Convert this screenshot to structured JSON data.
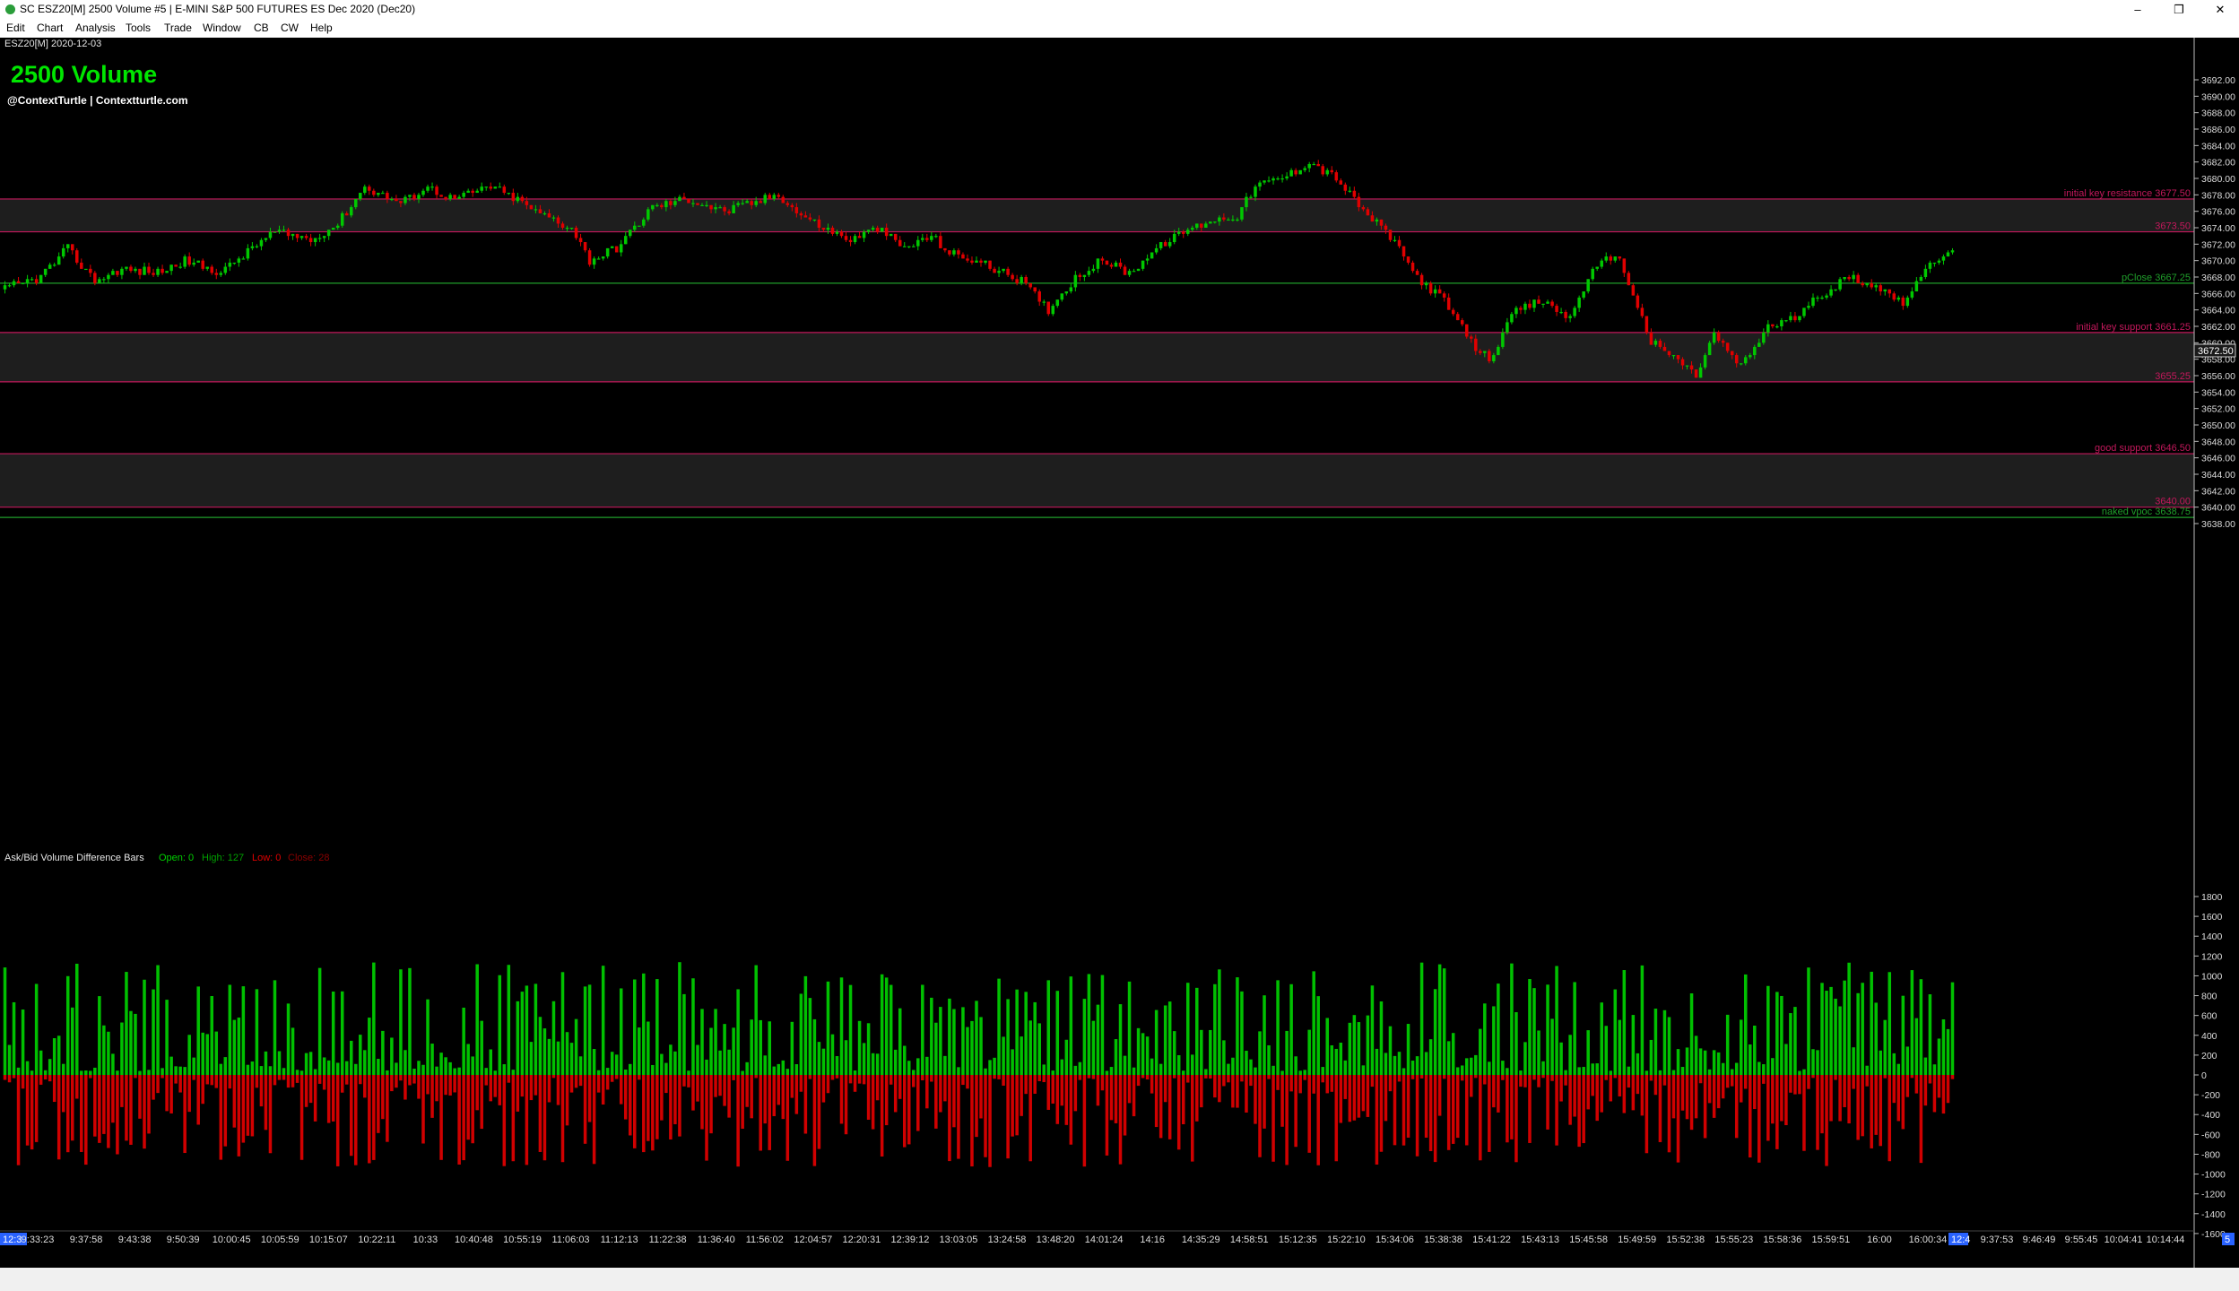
{
  "window": {
    "title": "SC ESZ20[M]  2500 Volume  #5 | E-MINI S&P 500 FUTURES ES Dec 2020 (Dec20)",
    "controls": [
      "–",
      "❐",
      "✕"
    ]
  },
  "menu": [
    "Edit",
    "Chart",
    "Analysis",
    "Tools",
    "Trade",
    "Window",
    "CB",
    "CW",
    "Help"
  ],
  "chart": {
    "symbol_date": "ESZ20[M] 2020-12-03",
    "heading": "2500 Volume",
    "credit": "@ContextTurtle | Contextturtle.com",
    "current_price": "3672.50",
    "price_axis": [
      "3692.00",
      "3690.00",
      "3688.00",
      "3686.00",
      "3684.00",
      "3682.00",
      "3680.00",
      "3678.00",
      "3676.00",
      "3674.00",
      "3672.00",
      "3670.00",
      "3668.00",
      "3666.00",
      "3664.00",
      "3662.00",
      "3660.00",
      "3658.00",
      "3656.00",
      "3654.00",
      "3652.00",
      "3650.00",
      "3648.00",
      "3646.00",
      "3644.00",
      "3642.00",
      "3640.00",
      "3638.00"
    ],
    "levels": [
      {
        "label": "initial key resistance  3677.50",
        "price": 3677.5,
        "color": "#c2185b"
      },
      {
        "label": "3673.50",
        "price": 3673.5,
        "color": "#c2185b"
      },
      {
        "label": "pClose  3667.25",
        "price": 3667.25,
        "color": "#1f9e2a"
      },
      {
        "label": "initial key support  3661.25",
        "price": 3661.25,
        "color": "#c2185b"
      },
      {
        "label": "3655.25",
        "price": 3655.25,
        "color": "#c2185b"
      },
      {
        "label": "good support  3646.50",
        "price": 3646.5,
        "color": "#c2185b"
      },
      {
        "label": "3640.00",
        "price": 3640.0,
        "color": "#c2185b"
      },
      {
        "label": "naked vpoc  3638.75",
        "price": 3638.75,
        "color": "#1f9e2a"
      }
    ],
    "zones": [
      {
        "top": 3677.5,
        "bottom": 3673.5
      },
      {
        "top": 3661.25,
        "bottom": 3655.25
      },
      {
        "top": 3646.5,
        "bottom": 3640.0
      }
    ],
    "up_color": "#00c800",
    "down_color": "#e00000",
    "price_waypoints": [
      [
        0,
        3666.5
      ],
      [
        8,
        3668
      ],
      [
        14,
        3671.5
      ],
      [
        20,
        3667.5
      ],
      [
        26,
        3669
      ],
      [
        34,
        3668.5
      ],
      [
        40,
        3670
      ],
      [
        48,
        3668.5
      ],
      [
        56,
        3672
      ],
      [
        60,
        3673.5
      ],
      [
        68,
        3672.5
      ],
      [
        74,
        3674.5
      ],
      [
        80,
        3679
      ],
      [
        88,
        3677
      ],
      [
        94,
        3679
      ],
      [
        100,
        3677.5
      ],
      [
        108,
        3679
      ],
      [
        112,
        3678
      ],
      [
        118,
        3676
      ],
      [
        126,
        3674
      ],
      [
        130,
        3670
      ],
      [
        136,
        3671.5
      ],
      [
        144,
        3676.5
      ],
      [
        152,
        3677.5
      ],
      [
        160,
        3676
      ],
      [
        166,
        3677
      ],
      [
        172,
        3678
      ],
      [
        176,
        3676
      ],
      [
        182,
        3674
      ],
      [
        188,
        3672.5
      ],
      [
        194,
        3674
      ],
      [
        200,
        3671.5
      ],
      [
        206,
        3673
      ],
      [
        210,
        3671
      ],
      [
        218,
        3669.5
      ],
      [
        226,
        3667.5
      ],
      [
        232,
        3664
      ],
      [
        238,
        3668
      ],
      [
        244,
        3670
      ],
      [
        250,
        3668.5
      ],
      [
        256,
        3671.5
      ],
      [
        262,
        3673.5
      ],
      [
        268,
        3675
      ],
      [
        274,
        3675.5
      ],
      [
        278,
        3679
      ],
      [
        284,
        3680
      ],
      [
        290,
        3682
      ],
      [
        296,
        3680
      ],
      [
        302,
        3676
      ],
      [
        308,
        3673
      ],
      [
        314,
        3668
      ],
      [
        320,
        3665
      ],
      [
        326,
        3660
      ],
      [
        330,
        3658
      ],
      [
        336,
        3664
      ],
      [
        342,
        3665
      ],
      [
        348,
        3663
      ],
      [
        352,
        3668
      ],
      [
        358,
        3671
      ],
      [
        362,
        3666
      ],
      [
        366,
        3660
      ],
      [
        372,
        3658
      ],
      [
        376,
        3656
      ],
      [
        380,
        3661
      ],
      [
        386,
        3657
      ],
      [
        392,
        3662
      ],
      [
        398,
        3663
      ],
      [
        404,
        3666
      ],
      [
        410,
        3668
      ],
      [
        416,
        3667
      ],
      [
        422,
        3665
      ],
      [
        426,
        3668
      ],
      [
        430,
        3670.5
      ],
      [
        433,
        3671.5
      ]
    ],
    "volume_seed": 42
  },
  "indicator": {
    "name": "Ask/Bid Volume Difference Bars",
    "open": "Open: 0",
    "high": "High: 127",
    "low": "Low: 0",
    "close": "Close: 28",
    "axis": [
      "1800",
      "1600",
      "1400",
      "1200",
      "1000",
      "800",
      "600",
      "400",
      "200",
      "0",
      "-200",
      "-400",
      "-600",
      "-800",
      "-1000",
      "-1200",
      "-1400",
      "-1600"
    ]
  },
  "time_axis": {
    "left_marker": "12:3",
    "labels": [
      "9:33:23",
      "9:37:58",
      "9:43:38",
      "9:50:39",
      "10:00:45",
      "10:05:59",
      "10:15:07",
      "10:22:11",
      "10:33",
      "10:40:48",
      "10:55:19",
      "11:06:03",
      "11:12:13",
      "11:22:38",
      "11:36:40",
      "11:56:02",
      "12:04:57",
      "12:20:31",
      "12:39:12",
      "13:03:05",
      "13:24:58",
      "13:48:20",
      "14:01:24",
      "14:16",
      "14:35:29",
      "14:58:51",
      "15:12:35",
      "15:22:10",
      "15:34:06",
      "15:38:38",
      "15:41:22",
      "15:43:13",
      "15:45:58",
      "15:49:59",
      "15:52:38",
      "15:55:23",
      "15:58:36",
      "15:59:51",
      "16:00",
      "16:00:34"
    ],
    "mid_marker": "12:4",
    "right_labels": [
      "9:37:53",
      "9:46:49",
      "9:55:45",
      "10:04:41",
      "10:14:44"
    ],
    "corner_marker": "5"
  }
}
